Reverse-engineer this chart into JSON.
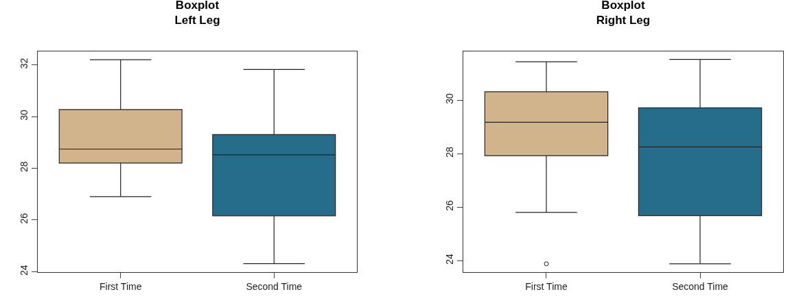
{
  "chart_data": [
    {
      "type": "box",
      "title": "Boxplot\nLeft Leg",
      "categories": [
        "First Time",
        "Second Time"
      ],
      "colors": [
        "#d2b48c",
        "#256d8a"
      ],
      "ylim": [
        23.98,
        32.52
      ],
      "yticks": [
        24,
        26,
        28,
        30,
        32
      ],
      "grid": false,
      "legend": false,
      "boxes": [
        {
          "low": 26.9,
          "q1": 28.2,
          "median": 28.74,
          "q3": 30.27,
          "high": 32.2
        },
        {
          "low": 24.31,
          "q1": 26.16,
          "median": 28.52,
          "q3": 29.3,
          "high": 31.82
        }
      ]
    },
    {
      "type": "box",
      "title": "Boxplot\nRight Leg",
      "categories": [
        "First Time",
        "Second Time"
      ],
      "colors": [
        "#d2b48c",
        "#256d8a"
      ],
      "ylim": [
        23.57,
        31.82
      ],
      "yticks": [
        24,
        26,
        28,
        30
      ],
      "grid": false,
      "legend": false,
      "boxes": [
        {
          "low": 25.8,
          "q1": 27.92,
          "median": 29.17,
          "q3": 30.31,
          "high": 31.43,
          "outliers": [
            23.88
          ]
        },
        {
          "low": 23.88,
          "q1": 25.68,
          "median": 28.25,
          "q3": 29.71,
          "high": 31.52
        }
      ]
    }
  ]
}
